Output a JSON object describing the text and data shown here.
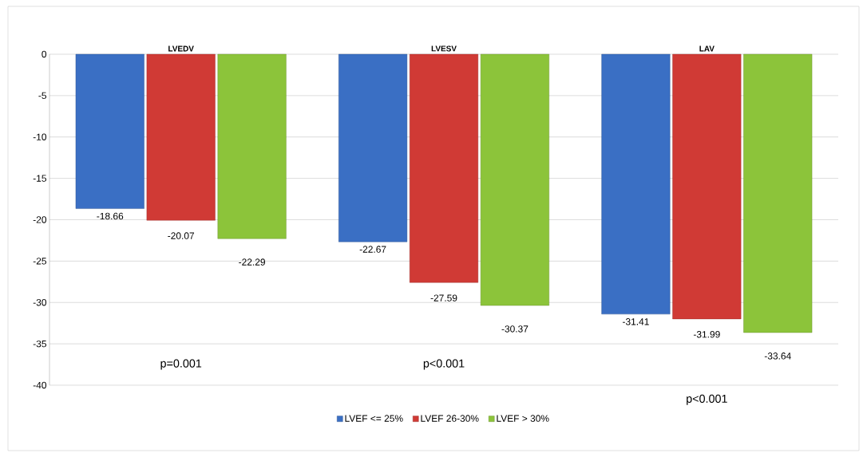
{
  "chart_data": {
    "type": "bar",
    "categories": [
      "LVEDV",
      "LVESV",
      "LAV"
    ],
    "series": [
      {
        "name": "LVEF <= 25%",
        "color": "#3a6fc4",
        "values": [
          -18.66,
          -22.67,
          -31.41
        ]
      },
      {
        "name": "LVEF 26-30%",
        "color": "#d03a35",
        "values": [
          -20.07,
          -27.59,
          -31.99
        ]
      },
      {
        "name": "LVEF > 30%",
        "color": "#8cc43a",
        "values": [
          -22.29,
          -30.37,
          -33.64
        ]
      }
    ],
    "ylim": [
      -40,
      0
    ],
    "yticks": [
      -40,
      -35,
      -30,
      -25,
      -20,
      -15,
      -10,
      -5,
      0
    ],
    "grid": "y",
    "legend": "bottom",
    "data_labels": true,
    "annotations": [
      "p=0.001",
      "p<0.001",
      "p<0.001"
    ]
  }
}
